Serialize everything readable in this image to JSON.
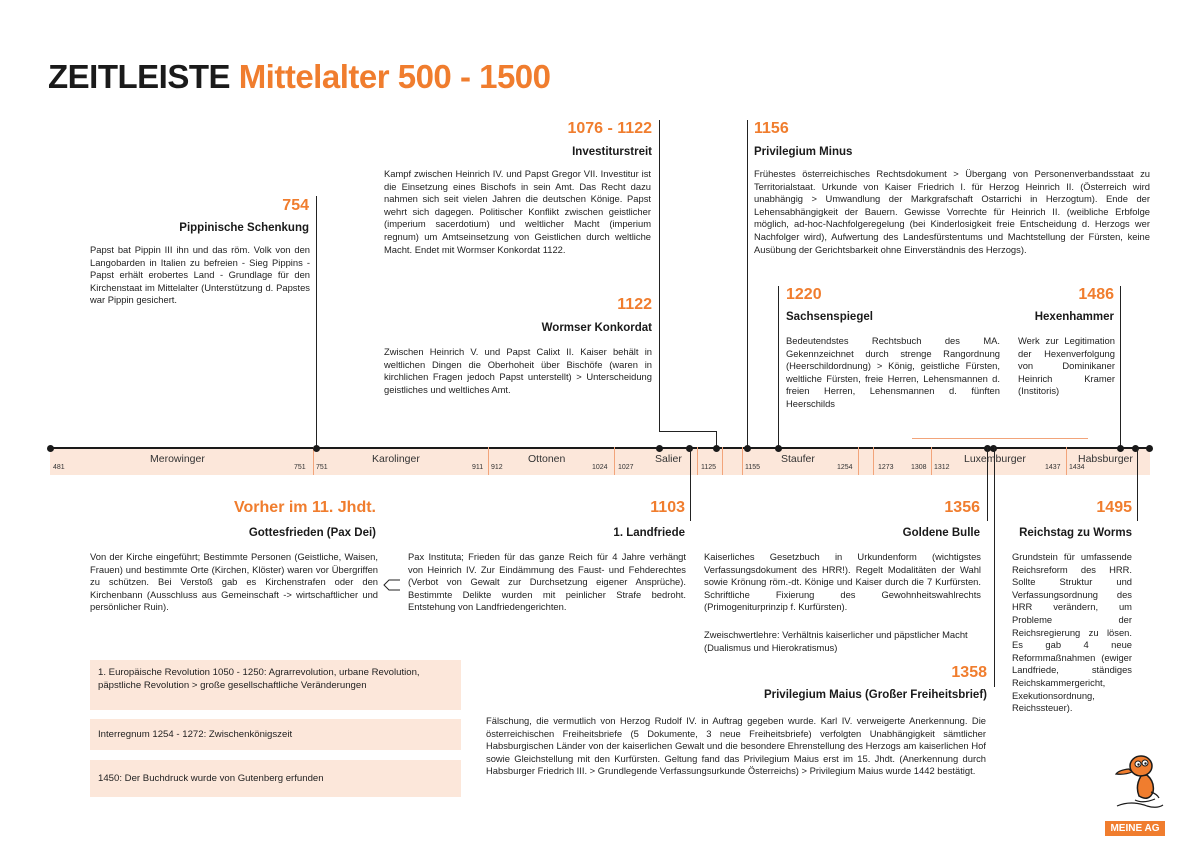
{
  "header": {
    "title_black": "ZEITLEISTE",
    "title_orange": "Mittelalter 500 - 1500"
  },
  "events": {
    "e754": {
      "year": "754",
      "title": "Pippinische Schenkung",
      "text": "Papst bat Pippin III ihn und das röm. Volk von den Langobarden in Italien zu befreien - Sieg Pippins - Papst erhält erobertes Land - Grundlage für den Kirchenstaat im Mittelalter (Unterstützung d. Papstes war Pippin gesichert."
    },
    "e1076": {
      "year": "1076 - 1122",
      "title": "Investiturstreit",
      "text": "Kampf zwischen Heinrich IV. und Papst Gregor VII. Investitur ist die Einsetzung eines Bischofs in sein Amt. Das Recht dazu nahmen sich seit vielen Jahren die deutschen Könige. Papst wehrt sich dagegen. Politischer Konflikt zwischen geistlicher (imperium sacerdotium) und weltlicher Macht (imperium regnum) um Amtseinsetzung von Geistlichen durch weltliche Macht. Endet mit Wormser Konkordat 1122."
    },
    "e1122": {
      "year": "1122",
      "title": "Wormser Konkordat",
      "text": "Zwischen Heinrich V. und Papst Calixt II. Kaiser behält in weltlichen Dingen die Oberhoheit über Bischöfe (waren in kirchlichen Fragen jedoch Papst unterstellt) > Unterscheidung geistliches und weltliches Amt."
    },
    "e1156": {
      "year": "1156",
      "title": "Privilegium Minus",
      "text": "Frühestes österreichisches Rechtsdokument > Übergang von Personenverbandsstaat zu Territorialstaat. Urkunde von Kaiser Friedrich I. für Herzog Heinrich II. (Österreich wird unabhängig > Umwandlung der Markgrafschaft Ostarrichi in Herzogtum). Ende der Lehensabhängigkeit der Bauern. Gewisse Vorrechte für Heinrich II. (weibliche Erbfolge möglich, ad-hoc-Nachfolgeregelung (bei Kinderlosigkeit freie Entscheidung d. Herzogs wer Nachfolger wird), Aufwertung des Landesfürstentums und Machtstellung der Fürsten, keine Ausübung der Gerichtsbarkeit ohne Einverständnis des Herzogs)."
    },
    "e1220": {
      "year": "1220",
      "title": "Sachsenspiegel",
      "text": "Bedeutendstes Rechtsbuch des MA. Gekennzeichnet durch strenge Rangordnung (Heerschildordnung) > König, geistliche Fürsten, weltliche Fürsten, freie Herren, Lehensmannen d. freien Herren, Lehensmannen d. fünften Heerschilds"
    },
    "e1486": {
      "year": "1486",
      "title": "Hexenhammer",
      "text": "Werk zur Legitimation der Hexenverfolgung von Dominikaner Heinrich Kramer (Institoris)"
    },
    "before": {
      "year": "Vorher im 11. Jhdt.",
      "title": "Gottesfrieden (Pax Dei)",
      "text": "Von der Kirche eingeführt; Bestimmte Personen (Geistliche, Waisen, Frauen) und bestimmte Orte (Kirchen, Klöster) waren vor Übergriffen zu schützen. Bei Verstoß gab es Kirchenstrafen oder den Kirchenbann (Ausschluss aus Gemeinschaft -> wirtschaftlicher und persönlicher Ruin)."
    },
    "e1103": {
      "year": "1103",
      "title": "1. Landfriede",
      "text": "Pax Instituta; Frieden für das ganze Reich für 4 Jahre verhängt von Heinrich IV. Zur Eindämmung des Faust- und Fehderechtes (Verbot von Gewalt zur Durchsetzung eigener Ansprüche). Bestimmte Delikte wurden mit peinlicher Strafe bedroht. Entstehung von Landfriedengerichten."
    },
    "e1356": {
      "year": "1356",
      "title": "Goldene Bulle",
      "text": "Kaiserliches Gesetzbuch in Urkundenform (wichtigstes Verfassungsdokument des HRR!). Regelt Modalitäten der Wahl sowie Krönung röm.-dt. Könige und Kaiser durch die 7 Kurfürsten. Schriftliche Fixierung des Gewohnheitswahlrechts (Primogeniturprinzip f. Kurfürsten).",
      "text2": "Zweischwertlehre: Verhältnis kaiserlicher und päpstlicher Macht (Dualismus und Hierokratismus)"
    },
    "e1358": {
      "year": "1358",
      "title": "Privilegium Maius (Großer Freiheitsbrief)",
      "text": "Fälschung, die vermutlich von Herzog Rudolf IV. in Auftrag gegeben wurde. Karl IV. verweigerte Anerkennung. Die österreichischen Freiheitsbriefe (5 Dokumente, 3 neue Freiheitsbriefe) verfolgten Unabhängigkeit sämtlicher Habsburgischen Länder von der kaiserlichen Gewalt und die besondere Ehrenstellung des Herzogs am kaiserlichen Hof sowie Gleichstellung mit den Kurfürsten. Geltung fand das Privilegium Maius erst im 15. Jhdt. (Anerkennung durch Habsburger Friedrich III. > Grundlegende Verfassungsurkunde Österreichs) > Privilegium Maius wurde 1442 bestätigt."
    },
    "e1495": {
      "year": "1495",
      "title": "Reichstag zu Worms",
      "text": "Grundstein für umfassende Reichsreform des HRR. Sollte Struktur und Verfassungsordnung des HRR verändern, um Probleme der Reichsregierung zu lösen. Es gab 4 neue Reformmaßnahmen (ewiger Landfriede, ständiges Reichskammergericht, Exekutionsordnung, Reichssteuer)."
    }
  },
  "eras": [
    {
      "name": "Merowinger",
      "start": "481",
      "end": "751"
    },
    {
      "name": "Karolinger",
      "start": "751",
      "end": "911"
    },
    {
      "name": "Ottonen",
      "start": "912",
      "end": "1024"
    },
    {
      "name": "Salier",
      "start": "1027",
      "end": "1125"
    },
    {
      "name": "Staufer",
      "start": "1155",
      "end": "1254"
    },
    {
      "name": "Luxemburger",
      "start": "1273",
      "end": "1437"
    },
    {
      "name": "Habsburger",
      "start": "1434",
      "end": ""
    }
  ],
  "extra_ticks": {
    "t1308": "1308",
    "t1312": "1312"
  },
  "notes": [
    "1. Europäische Revolution 1050 - 1250: Agrarrevolution, urbane Revolution, päpstliche Revolution > große gesellschaftliche Veränderungen",
    "Interregnum 1254 - 1272: Zwischenkönigszeit",
    "1450: Der Buchdruck wurde von Gutenberg erfunden"
  ],
  "logo": {
    "text": "MEINE AG"
  },
  "colors": {
    "accent": "#f07d2e",
    "band": "#fce7da",
    "text": "#1a1a1a"
  }
}
